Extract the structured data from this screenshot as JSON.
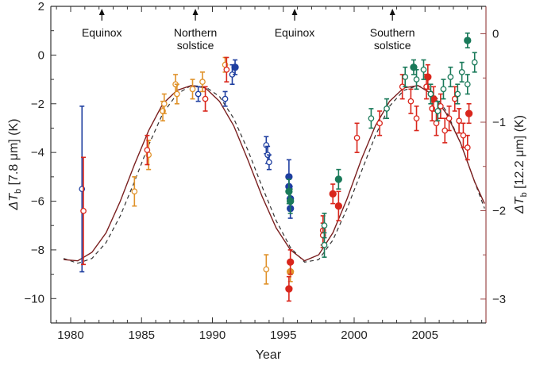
{
  "chart_data": {
    "type": "scatter",
    "title": "",
    "xlabel": "Year",
    "ylabel_left_prefix": "ΔT",
    "ylabel_left_sub": "b",
    "ylabel_left_suffix": "[7.8 μm] (K)",
    "ylabel_right_prefix": "ΔT",
    "ylabel_right_sub": "b",
    "ylabel_right_suffix": "[12.2 μm] (K)",
    "xlim": [
      1978.6,
      2009.3
    ],
    "ylim_left": [
      -11,
      2
    ],
    "ylim_right": [
      -3.27,
      0.31
    ],
    "x_ticks": [
      1980,
      1985,
      1990,
      1995,
      2000,
      2005
    ],
    "x_tick_labels": [
      "1980",
      "1985",
      "1990",
      "1995",
      "2000",
      "2005"
    ],
    "y_left_ticks": [
      2,
      0,
      -2,
      -4,
      -6,
      -8,
      -10
    ],
    "y_left_tick_labels": [
      "2",
      "0",
      "−2",
      "−4",
      "−6",
      "−8",
      "−10"
    ],
    "y_right_ticks": [
      0,
      -1,
      -2,
      -3
    ],
    "y_right_tick_labels": [
      "0",
      "−1",
      "−2",
      "−3"
    ],
    "colors": {
      "axis": "#333333",
      "right_axis": "#9b4a4a",
      "model_solid": "#7a1f1f",
      "model_dashed": "#333333",
      "blue": "#1f3fa0",
      "red": "#d9261c",
      "orange": "#e0922a",
      "green": "#1a7a5a"
    },
    "annotations": [
      {
        "x": 1982.2,
        "lines": [
          "Equinox"
        ]
      },
      {
        "x": 1988.8,
        "lines": [
          "Northern",
          "solstice"
        ]
      },
      {
        "x": 1995.8,
        "lines": [
          "Equinox"
        ]
      },
      {
        "x": 2002.7,
        "lines": [
          "Southern",
          "solstice"
        ]
      }
    ],
    "model_solid": {
      "x": [
        1979.5,
        1980.5,
        1981.5,
        1982.5,
        1983.5,
        1984.5,
        1985.5,
        1986.5,
        1987.5,
        1988.5,
        1989.5,
        1990.5,
        1991.5,
        1992.5,
        1993.5,
        1994.5,
        1995.5,
        1996.5,
        1997.5,
        1998.5,
        1999.5,
        2000.5,
        2001.5,
        2002.5,
        2003.5,
        2004.5,
        2005.5,
        2006.5,
        2007.5,
        2008.5,
        2009.2
      ],
      "y": [
        -8.4,
        -8.45,
        -8.1,
        -7.3,
        -6.0,
        -4.5,
        -3.1,
        -2.0,
        -1.45,
        -1.25,
        -1.35,
        -1.9,
        -2.9,
        -4.3,
        -5.8,
        -7.1,
        -8.0,
        -8.45,
        -8.2,
        -7.3,
        -5.9,
        -4.3,
        -2.9,
        -1.9,
        -1.35,
        -1.25,
        -1.6,
        -2.4,
        -3.6,
        -5.2,
        -6.1
      ]
    },
    "model_dashed": {
      "x": [
        1979.5,
        1980.5,
        1981.5,
        1982.5,
        1983.5,
        1984.5,
        1985.5,
        1986.5,
        1987.5,
        1988.5,
        1989.5,
        1990.5,
        1991.5,
        1992.5,
        1993.5,
        1994.5,
        1995.5,
        1996.5,
        1997.5,
        1998.5,
        1999.5,
        2000.5,
        2001.5,
        2002.5,
        2003.5,
        2004.5,
        2005.5,
        2006.5,
        2007.5,
        2008.5,
        2009.2
      ],
      "y": [
        -8.35,
        -8.55,
        -8.35,
        -7.7,
        -6.6,
        -5.2,
        -3.7,
        -2.4,
        -1.6,
        -1.25,
        -1.3,
        -1.7,
        -2.6,
        -3.9,
        -5.4,
        -6.8,
        -7.9,
        -8.5,
        -8.4,
        -7.6,
        -6.3,
        -4.8,
        -3.3,
        -2.1,
        -1.45,
        -1.25,
        -1.5,
        -2.3,
        -3.6,
        -5.2,
        -6.3
      ]
    },
    "series": [
      {
        "name": "blue-open",
        "color": "blue",
        "filled": false,
        "axis": "left",
        "points": [
          [
            1980.8,
            -5.5,
            3.4
          ],
          [
            1989.0,
            -1.6,
            0.3
          ],
          [
            1990.9,
            -1.8,
            0.3
          ],
          [
            1991.4,
            -0.8,
            0.4
          ],
          [
            1993.8,
            -3.7,
            0.35
          ],
          [
            1993.9,
            -4.1,
            0.35
          ],
          [
            1994.0,
            -4.4,
            0.3
          ]
        ]
      },
      {
        "name": "blue-filled",
        "color": "blue",
        "filled": true,
        "axis": "left",
        "points": [
          [
            1991.6,
            -0.5,
            0.3
          ],
          [
            1995.4,
            -5.0,
            0.7
          ],
          [
            1995.4,
            -5.4,
            0.5
          ],
          [
            1995.5,
            -5.9,
            0.5
          ],
          [
            1995.5,
            -6.3,
            0.4
          ]
        ]
      },
      {
        "name": "orange-open",
        "color": "orange",
        "filled": false,
        "axis": "left",
        "points": [
          [
            1984.5,
            -5.6,
            0.6
          ],
          [
            1985.5,
            -4.1,
            0.6
          ],
          [
            1986.5,
            -2.3,
            0.4
          ],
          [
            1986.6,
            -2.0,
            0.4
          ],
          [
            1987.4,
            -1.2,
            0.4
          ],
          [
            1987.5,
            -1.6,
            0.4
          ],
          [
            1988.6,
            -1.4,
            0.4
          ],
          [
            1989.3,
            -1.1,
            0.4
          ],
          [
            1990.9,
            -0.4,
            0.3
          ],
          [
            1993.8,
            -8.8,
            0.6
          ]
        ]
      },
      {
        "name": "orange-filled",
        "color": "orange",
        "filled": true,
        "axis": "left",
        "points": [
          [
            1995.5,
            -8.9,
            0.4
          ]
        ]
      },
      {
        "name": "red-open",
        "color": "red",
        "filled": false,
        "axis": "left",
        "points": [
          [
            1980.9,
            -6.4,
            2.2
          ],
          [
            1985.4,
            -3.9,
            0.6
          ],
          [
            1989.5,
            -1.8,
            0.5
          ],
          [
            1991.0,
            -0.6,
            0.5
          ],
          [
            1997.8,
            -7.2,
            0.6
          ],
          [
            1997.8,
            -7.4,
            0.5
          ],
          [
            2000.2,
            -3.4,
            0.6
          ],
          [
            2001.8,
            -2.8,
            0.5
          ],
          [
            2003.4,
            -1.3,
            0.5
          ],
          [
            2004.0,
            -1.9,
            0.5
          ],
          [
            2004.4,
            -2.6,
            0.5
          ],
          [
            2005.1,
            -1.3,
            0.5
          ],
          [
            2005.5,
            -2.2,
            0.5
          ],
          [
            2005.8,
            -2.8,
            0.5
          ],
          [
            2006.1,
            -2.1,
            0.5
          ],
          [
            2006.4,
            -3.1,
            0.5
          ],
          [
            2006.7,
            -2.6,
            0.5
          ],
          [
            2007.1,
            -1.8,
            0.5
          ],
          [
            2007.4,
            -2.7,
            0.5
          ],
          [
            2007.7,
            -3.3,
            0.5
          ],
          [
            2008.0,
            -3.8,
            0.5
          ]
        ]
      },
      {
        "name": "red-filled",
        "color": "red",
        "filled": true,
        "axis": "left",
        "points": [
          [
            1995.5,
            -8.5,
            0.5
          ],
          [
            1995.4,
            -9.6,
            0.5
          ],
          [
            1998.5,
            -5.7,
            0.4
          ],
          [
            1998.9,
            -6.2,
            0.6
          ],
          [
            2005.2,
            -0.9,
            0.5
          ],
          [
            2005.6,
            -1.8,
            0.5
          ],
          [
            2008.1,
            -2.4,
            0.4
          ]
        ]
      },
      {
        "name": "green-open",
        "color": "green",
        "filled": false,
        "axis": "left",
        "points": [
          [
            1997.9,
            -7.0,
            0.5
          ],
          [
            1997.9,
            -7.8,
            0.5
          ],
          [
            2001.2,
            -2.6,
            0.4
          ],
          [
            2002.3,
            -2.2,
            0.4
          ],
          [
            2003.6,
            -0.9,
            0.4
          ],
          [
            2004.4,
            -1.0,
            0.4
          ],
          [
            2004.9,
            -0.6,
            0.4
          ],
          [
            2005.4,
            -1.6,
            0.4
          ],
          [
            2005.9,
            -2.3,
            0.4
          ],
          [
            2006.3,
            -1.4,
            0.4
          ],
          [
            2006.8,
            -0.9,
            0.4
          ],
          [
            2007.3,
            -1.6,
            0.4
          ],
          [
            2007.6,
            -0.7,
            0.4
          ],
          [
            2008.0,
            -1.2,
            0.4
          ],
          [
            2008.5,
            -0.3,
            0.4
          ]
        ]
      },
      {
        "name": "green-filled",
        "color": "green",
        "filled": true,
        "axis": "left",
        "points": [
          [
            1995.4,
            -5.6,
            0.5
          ],
          [
            1995.5,
            -6.0,
            0.5
          ],
          [
            1998.9,
            -5.1,
            0.4
          ],
          [
            2004.2,
            -0.5,
            0.3
          ],
          [
            2008.0,
            0.6,
            0.3
          ]
        ]
      }
    ]
  }
}
